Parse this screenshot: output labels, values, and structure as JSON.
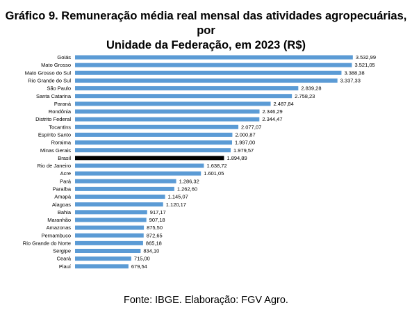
{
  "title_line1": "Gráfico 9. Remuneração média real mensal das atividades agropecuárias, por",
  "title_line2": "Unidade da Federação, em 2023 (R$)",
  "source": "Fonte: IBGE. Elaboração: FGV Agro.",
  "colors": {
    "bar": "#5b9bd5",
    "highlight": "#000000"
  },
  "chart_data": {
    "type": "bar",
    "orientation": "horizontal",
    "title": "Gráfico 9. Remuneração média real mensal das atividades agropecuárias, por Unidade da Federação, em 2023 (R$)",
    "highlight": "Brasil",
    "categories": [
      "Goiás",
      "Mato Grosso",
      "Mato Grosso do Sul",
      "Rio Grande do Sul",
      "São Paulo",
      "Santa Catarina",
      "Paraná",
      "Rondônia",
      "Distrito Federal",
      "Tocantins",
      "Espírito Santo",
      "Roraima",
      "Minas Gerais",
      "Brasil",
      "Rio de Janeiro",
      "Acre",
      "Pará",
      "Paraíba",
      "Amapá",
      "Alagoas",
      "Bahia",
      "Maranhão",
      "Amazonas",
      "Pernambuco",
      "Rio Grande do Norte",
      "Sergipe",
      "Ceará",
      "Piauí"
    ],
    "values": [
      3532.99,
      3521.05,
      3388.38,
      3337.33,
      2839.28,
      2758.23,
      2487.84,
      2346.29,
      2344.47,
      2077.07,
      2000.87,
      1997.0,
      1979.57,
      1894.89,
      1638.72,
      1601.05,
      1286.32,
      1262.6,
      1145.07,
      1120.17,
      917.17,
      907.18,
      875.5,
      872.65,
      865.18,
      834.1,
      715.0,
      679.54
    ],
    "value_labels": [
      "3.532,99",
      "3.521,05",
      "3.388,38",
      "3.337,33",
      "2.839,28",
      "2.758,23",
      "2.487,84",
      "2.346,29",
      "2.344,47",
      "2.077,07",
      "2.000,87",
      "1.997,00",
      "1.979,57",
      "1.894,89",
      "1.638,72",
      "1.601,05",
      "1.286,32",
      "1.262,60",
      "1.145,07",
      "1.120,17",
      "917,17",
      "907,18",
      "875,50",
      "872,65",
      "865,18",
      "834,10",
      "715,00",
      "679,54"
    ],
    "xlim": [
      0,
      3600
    ],
    "grid": false,
    "legend": "none"
  }
}
